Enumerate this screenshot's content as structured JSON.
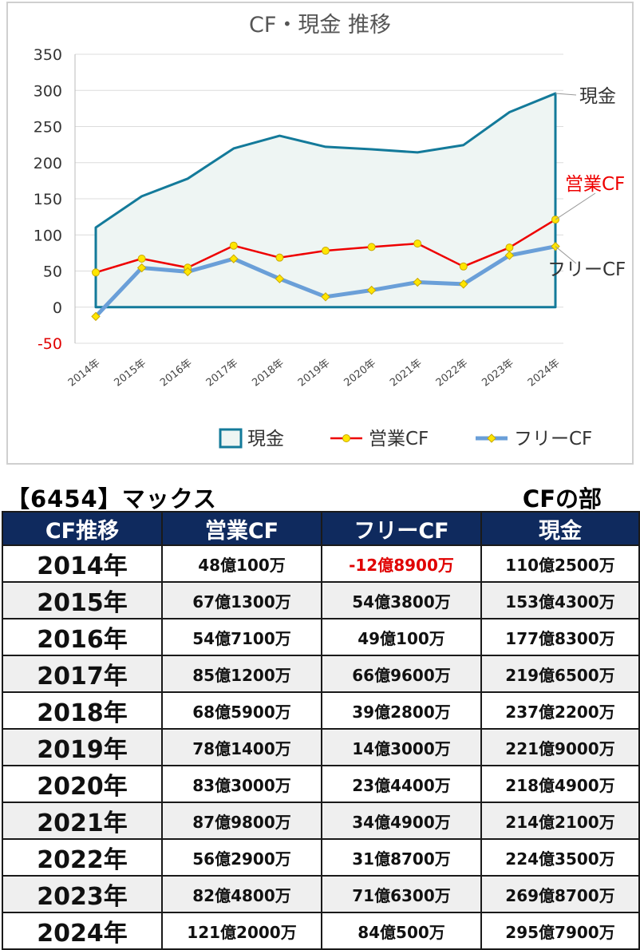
{
  "chart_data": {
    "type": "line",
    "title": "CF・現金 推移",
    "categories": [
      "2014年",
      "2015年",
      "2016年",
      "2017年",
      "2018年",
      "2019年",
      "2020年",
      "2021年",
      "2022年",
      "2023年",
      "2024年"
    ],
    "series": [
      {
        "name": "現金",
        "values": [
          110.25,
          153.43,
          177.83,
          219.65,
          237.22,
          221.9,
          218.49,
          214.21,
          224.35,
          269.87,
          295.79
        ],
        "color": "#137a9a",
        "style": "area"
      },
      {
        "name": "営業CF",
        "values": [
          48.01,
          67.13,
          54.71,
          85.12,
          68.59,
          78.14,
          83.3,
          87.98,
          56.29,
          82.48,
          121.2
        ],
        "color": "#ee0000",
        "style": "line-markers"
      },
      {
        "name": "フリーCF",
        "values": [
          -12.89,
          54.38,
          49.01,
          66.96,
          39.28,
          14.3,
          23.44,
          34.49,
          31.87,
          71.63,
          84.05
        ],
        "color": "#6a9fd8",
        "style": "thick-line-markers"
      }
    ],
    "end_labels": [
      "現金",
      "営業CF",
      "フリーCF"
    ],
    "y_ticks": [
      "350",
      "300",
      "250",
      "200",
      "150",
      "100",
      "50",
      "0",
      "-50"
    ],
    "ylim": [
      -50,
      350
    ],
    "grid": true,
    "legend_position": "bottom",
    "legend": [
      "現金",
      "営業CF",
      "フリーCF"
    ]
  },
  "table": {
    "company": "【6454】マックス",
    "section": "CFの部",
    "headers": [
      "CF推移",
      "営業CF",
      "フリーCF",
      "現金"
    ],
    "rows": [
      {
        "year": "2014年",
        "op": "48億100万",
        "free": "-12億8900万",
        "cash": "110億2500万"
      },
      {
        "year": "2015年",
        "op": "67億1300万",
        "free": "54億3800万",
        "cash": "153億4300万"
      },
      {
        "year": "2016年",
        "op": "54億7100万",
        "free": "49億100万",
        "cash": "177億8300万"
      },
      {
        "year": "2017年",
        "op": "85億1200万",
        "free": "66億9600万",
        "cash": "219億6500万"
      },
      {
        "year": "2018年",
        "op": "68億5900万",
        "free": "39億2800万",
        "cash": "237億2200万"
      },
      {
        "year": "2019年",
        "op": "78億1400万",
        "free": "14億3000万",
        "cash": "221億9000万"
      },
      {
        "year": "2020年",
        "op": "83億3000万",
        "free": "23億4400万",
        "cash": "218億4900万"
      },
      {
        "year": "2021年",
        "op": "87億9800万",
        "free": "34億4900万",
        "cash": "214億2100万"
      },
      {
        "year": "2022年",
        "op": "56億2900万",
        "free": "31億8700万",
        "cash": "224億3500万"
      },
      {
        "year": "2023年",
        "op": "82億4800万",
        "free": "71億6300万",
        "cash": "269億8700万"
      },
      {
        "year": "2024年",
        "op": "121億2000万",
        "free": "84億500万",
        "cash": "295億7900万"
      }
    ]
  }
}
